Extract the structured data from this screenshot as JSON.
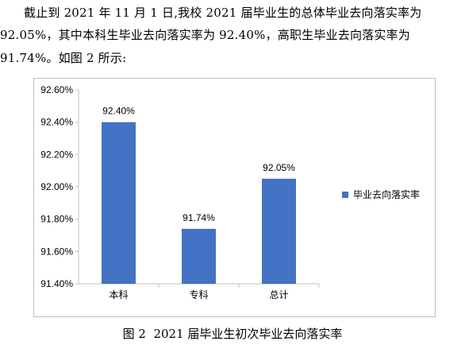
{
  "text": {
    "p1": "截止到 2021 年 11 月 1 日,我校 2021 届毕业生的总体毕业去向落实率为",
    "p2": "92.05%，其中本科生毕业去向落实率为 92.40%，高职生毕业去向落实率为",
    "p3": "91.74%。如图 2 所示:"
  },
  "caption": {
    "label": "图 2",
    "title": "2021 届毕业生初次毕业去向落实率"
  },
  "chart_data": {
    "type": "bar",
    "categories": [
      "本科",
      "专科",
      "总计"
    ],
    "series": [
      {
        "name": "毕业去向落实率",
        "values": [
          92.4,
          91.74,
          92.05
        ],
        "color": "#4472c4"
      }
    ],
    "data_labels": [
      "92.40%",
      "91.74%",
      "92.05%"
    ],
    "ylim": [
      91.4,
      92.6
    ],
    "yticks": [
      92.6,
      92.4,
      92.2,
      92.0,
      91.8,
      91.6,
      91.4
    ],
    "ytick_labels": [
      "92.60%",
      "92.40%",
      "92.20%",
      "92.00%",
      "91.80%",
      "91.60%",
      "91.40%"
    ],
    "grid": false,
    "legend_position": "right",
    "title": "",
    "xlabel": "",
    "ylabel": ""
  }
}
